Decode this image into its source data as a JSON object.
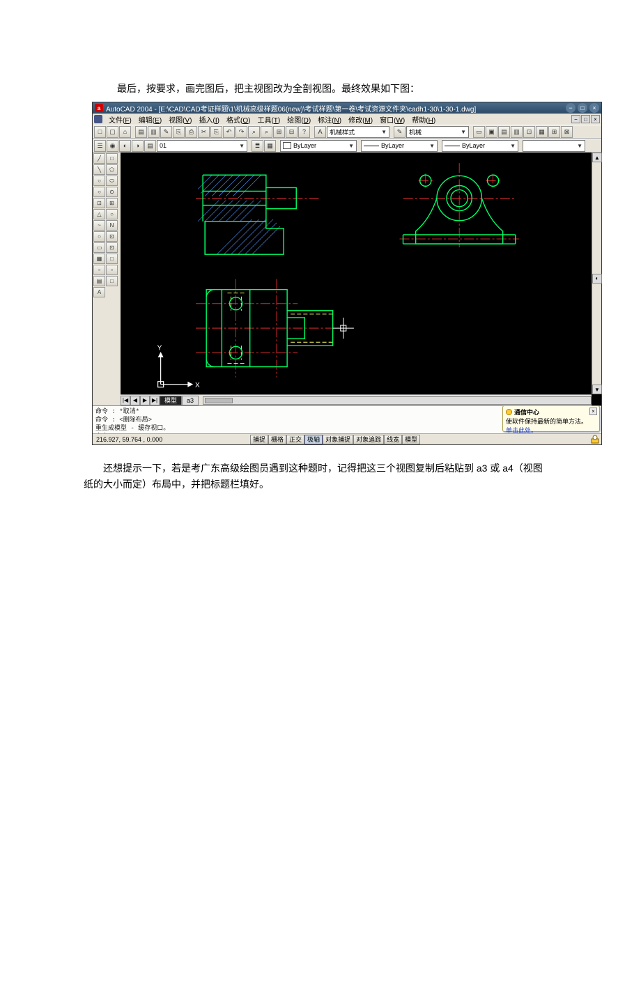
{
  "doc": {
    "intro": "最后，按要求，画完图后，把主视图改为全剖视图。最终效果如下图：",
    "outro": "还想提示一下，若是考广东高级绘图员遇到这种题时，记得把这三个视图复制后粘贴到 a3 或 a4（视图纸的大小而定）布局中，并把标题栏填好。"
  },
  "titlebar": {
    "icon_text": "a",
    "title": "AutoCAD 2004 - [E:\\CAD\\CAD考证样题\\1\\机械高级样题06(new)\\考试样题\\第一卷\\考试资源文件夹\\cadh1-30\\1-30-1.dwg]",
    "min": "−",
    "max": "□",
    "close": "×"
  },
  "menubar": {
    "items": [
      {
        "label": "文件(",
        "key": "F",
        "tail": ")"
      },
      {
        "label": "编辑(",
        "key": "E",
        "tail": ")"
      },
      {
        "label": "视图(",
        "key": "V",
        "tail": ")"
      },
      {
        "label": "插入(",
        "key": "I",
        "tail": ")"
      },
      {
        "label": "格式(",
        "key": "O",
        "tail": ")"
      },
      {
        "label": "工具(",
        "key": "T",
        "tail": ")"
      },
      {
        "label": "绘图(",
        "key": "D",
        "tail": ")"
      },
      {
        "label": "标注(",
        "key": "N",
        "tail": ")"
      },
      {
        "label": "修改(",
        "key": "M",
        "tail": ")"
      },
      {
        "label": "窗口(",
        "key": "W",
        "tail": ")"
      },
      {
        "label": "帮助(",
        "key": "H",
        "tail": ")"
      }
    ],
    "doc_min": "−",
    "doc_max": "□",
    "doc_close": "×"
  },
  "toolbar1": {
    "group1": [
      "□",
      "▢",
      "⌂"
    ],
    "group2": [
      "▤",
      "▥",
      "✎",
      "⎘",
      "⎙",
      "✂",
      "⎘",
      "↶",
      "↷",
      "⌕",
      "⌕",
      "⊞",
      "⊟",
      "?"
    ],
    "style_label": "机械样式",
    "std_btn": "✎",
    "std_combo": "机械",
    "groupR": [
      "▭",
      "▣",
      "▤",
      "▥",
      "⊡",
      "▦",
      "⊞",
      "⊠"
    ]
  },
  "toolbar2": {
    "layer_btns": [
      "☰",
      "◉",
      "◐",
      "◑",
      "▤"
    ],
    "layer_combo": "01",
    "layer_toggle": [
      "≣",
      "▦"
    ],
    "color_label": "ByLayer",
    "ltype_label": "ByLayer",
    "lweight_label": "ByLayer",
    "extra_combo": ""
  },
  "toolbar3": {
    "buttons": [
      "▭",
      "▭",
      "▭",
      "⊡",
      "⊡",
      "⊡",
      "⊡",
      "⊞",
      "⊟",
      "⊡",
      "⊡",
      "⌂",
      "▭",
      "▭",
      "▣",
      "▣",
      "▤",
      "▤",
      "▤",
      "⊡",
      "⊡",
      "▭",
      "▭",
      "⊞",
      "⊟",
      "▭",
      "▭"
    ]
  },
  "left_palette": {
    "tools": [
      "╱",
      "□",
      "╲",
      "⬠",
      "○",
      "⬭",
      "○",
      "⊙",
      "⊡",
      "⊞",
      "△",
      "○",
      "~",
      "N",
      "○",
      "⊡",
      "▭",
      "⊡",
      "▦",
      "□",
      "▫",
      "▫",
      "▤",
      "□",
      "A"
    ]
  },
  "canvas": {
    "bg": "#000000",
    "contour_color": "#00ff66",
    "hidden_color": "#ffff66",
    "hatch_color": "#5599ff",
    "center_color": "#ff3333",
    "ucs_color": "#ffffff",
    "ucs_labels": {
      "x": "X",
      "y": "Y"
    }
  },
  "tabs": {
    "model": "模型",
    "a3": "a3",
    "nav": [
      "|◀",
      "◀",
      "▶",
      "▶|"
    ]
  },
  "cmdline": {
    "lines": "命令 : *取消*\n命令 : <删除布局>\n重生成模型 - 缓存视口。\n命令 :"
  },
  "comm_center": {
    "title": "通信中心",
    "body": "使软件保持最新的简单方法。",
    "link": "单击此处。",
    "close": "×"
  },
  "statusbar": {
    "coords": "216.927, 59.764 , 0.000",
    "buttons": [
      {
        "label": "捕捉",
        "active": false
      },
      {
        "label": "栅格",
        "active": false
      },
      {
        "label": "正交",
        "active": false
      },
      {
        "label": "极轴",
        "active": true
      },
      {
        "label": "对象捕捉",
        "active": false
      },
      {
        "label": "对象追踪",
        "active": false
      },
      {
        "label": "线宽",
        "active": false
      },
      {
        "label": "模型",
        "active": false
      }
    ]
  }
}
